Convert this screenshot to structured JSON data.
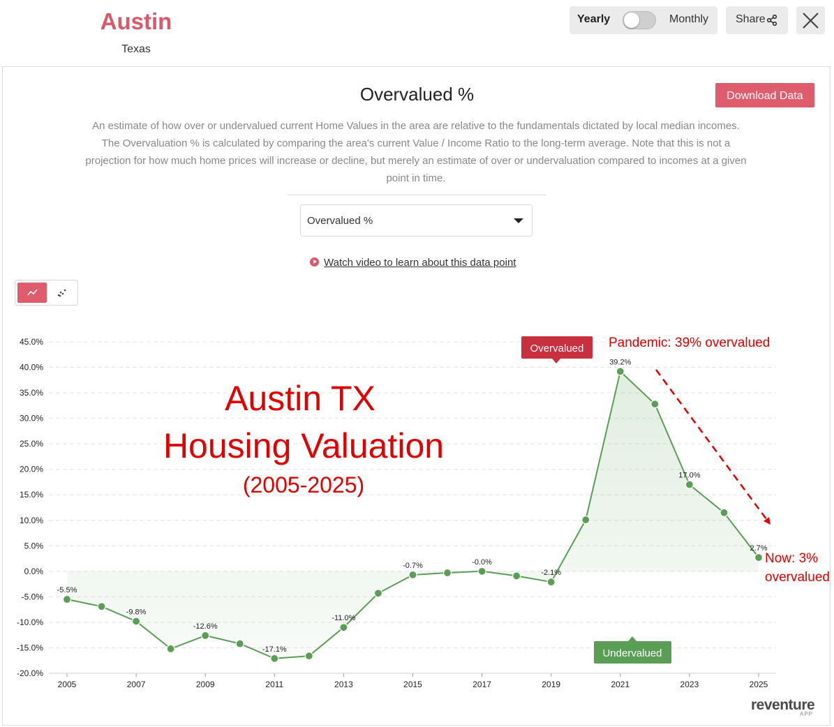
{
  "header": {
    "city": "Austin",
    "state": "Texas",
    "toggle_left": "Yearly",
    "toggle_right": "Monthly",
    "share": "Share"
  },
  "card": {
    "title": "Overvalued %",
    "download": "Download Data",
    "description": "An estimate of how over or undervalued current Home Values in the area are relative to the fundamentals dictated by local median incomes. The Overvaluation % is calculated by comparing the area's current Value / Income Ratio to the long-term average. Note that this is not a projection for how much home prices will increase or decline, but merely an estimate of over or undervaluation compared to incomes at a given point in time.",
    "select_value": "Overvalued %",
    "video_link": "Watch video to learn about this data point"
  },
  "brand": {
    "name": "reventure",
    "sub": "APP"
  },
  "colors": {
    "accent": "#df5c6d",
    "line": "#5a9e55",
    "annotation_red": "#e00000",
    "overvalued_badge": "#c9303f",
    "undervalued_badge": "#5a9e55"
  },
  "chart_data": {
    "type": "line",
    "x": [
      2005,
      2006,
      2007,
      2008,
      2009,
      2010,
      2011,
      2012,
      2013,
      2014,
      2015,
      2016,
      2017,
      2018,
      2019,
      2020,
      2021,
      2022,
      2023,
      2024,
      2025
    ],
    "y": [
      -5.5,
      -6.9,
      -9.8,
      -15.2,
      -12.6,
      -14.2,
      -17.1,
      -16.6,
      -11.0,
      -4.3,
      -0.7,
      -0.3,
      -0.0,
      -0.9,
      -2.1,
      10.1,
      39.2,
      32.8,
      17.0,
      11.5,
      2.7
    ],
    "point_labels": [
      "-5.5%",
      "",
      "-9.8%",
      "",
      "-12.6%",
      "",
      "-17.1%",
      "",
      "-11.0%",
      "",
      "-0.7%",
      "",
      "-0.0%",
      "",
      "-2.1%",
      "",
      "39.2%",
      "",
      "17.0%",
      "",
      "2.7%"
    ],
    "x_ticks": [
      "2005",
      "2007",
      "2009",
      "2011",
      "2013",
      "2015",
      "2017",
      "2019",
      "2021",
      "2023",
      "2025"
    ],
    "y_ticks": [
      "45.0%",
      "40.0%",
      "35.0%",
      "30.0%",
      "25.0%",
      "20.0%",
      "15.0%",
      "10.0%",
      "5.0%",
      "0.0%",
      "-5.0%",
      "-10.0%",
      "-15.0%",
      "-20.0%"
    ],
    "ylim": [
      -20,
      45
    ],
    "xlim": [
      2005,
      2025
    ],
    "grid": "horizontal dashed",
    "area_fill": "toward zero",
    "badges": {
      "over": "Overvalued",
      "under": "Undervalued"
    },
    "overlay_title": [
      "Austin TX",
      "Housing Valuation",
      "(2005-2025)"
    ],
    "annotations": {
      "peak": "Pandemic: 39% overvalued",
      "now_line1": "Now: 3%",
      "now_line2": "overvalued"
    }
  }
}
